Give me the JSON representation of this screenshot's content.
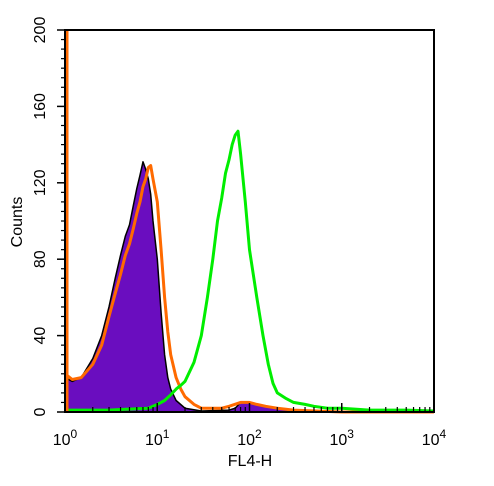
{
  "chart_data": {
    "type": "area",
    "xscale": "log",
    "xlim": [
      1,
      10000
    ],
    "ylim": [
      0,
      200
    ],
    "xlabel": "FL4-H",
    "ylabel": "Counts",
    "title": "",
    "grid": false,
    "legend": "none",
    "x_ticks": [
      {
        "value": 1,
        "base": "10",
        "exp": "0"
      },
      {
        "value": 10,
        "base": "10",
        "exp": "1"
      },
      {
        "value": 100,
        "base": "10",
        "exp": "2"
      },
      {
        "value": 1000,
        "base": "10",
        "exp": "3"
      },
      {
        "value": 10000,
        "base": "10",
        "exp": "4"
      }
    ],
    "y_ticks": [
      "0",
      "40",
      "80",
      "120",
      "160",
      "200"
    ],
    "series": [
      {
        "style": "filled",
        "color": "#6a0dbf",
        "outline_color": "#000000",
        "points": [
          [
            1.0,
            18
          ],
          [
            1.2,
            16
          ],
          [
            1.5,
            18
          ],
          [
            2.0,
            28
          ],
          [
            2.5,
            40
          ],
          [
            3.0,
            55
          ],
          [
            3.5,
            70
          ],
          [
            4.0,
            82
          ],
          [
            4.5,
            92
          ],
          [
            5.0,
            98
          ],
          [
            5.5,
            108
          ],
          [
            6.0,
            117
          ],
          [
            6.5,
            124
          ],
          [
            7.0,
            131
          ],
          [
            7.5,
            127
          ],
          [
            8.0,
            122
          ],
          [
            8.5,
            114
          ],
          [
            9.0,
            100
          ],
          [
            10.0,
            80
          ],
          [
            11.0,
            52
          ],
          [
            12.0,
            30
          ],
          [
            13.0,
            18
          ],
          [
            14.0,
            12
          ],
          [
            16.0,
            6
          ],
          [
            20.0,
            2
          ],
          [
            30.0,
            0.5
          ],
          [
            60.0,
            1
          ],
          [
            70.0,
            2
          ],
          [
            80.0,
            5
          ],
          [
            100.0,
            5
          ],
          [
            120.0,
            4
          ],
          [
            150.0,
            3
          ],
          [
            200.0,
            2
          ],
          [
            300.0,
            1
          ],
          [
            1000.0,
            0
          ],
          [
            10000.0,
            0
          ]
        ]
      },
      {
        "style": "line",
        "color": "#ff6a00",
        "points": [
          [
            1.0,
            20
          ],
          [
            1.2,
            17
          ],
          [
            1.5,
            18
          ],
          [
            2.0,
            25
          ],
          [
            2.5,
            35
          ],
          [
            3.0,
            50
          ],
          [
            3.5,
            62
          ],
          [
            4.0,
            72
          ],
          [
            4.5,
            82
          ],
          [
            5.0,
            88
          ],
          [
            5.5,
            96
          ],
          [
            6.0,
            104
          ],
          [
            6.5,
            110
          ],
          [
            7.0,
            118
          ],
          [
            7.5,
            122
          ],
          [
            8.0,
            128
          ],
          [
            8.5,
            129
          ],
          [
            9.0,
            122
          ],
          [
            10.0,
            110
          ],
          [
            11.0,
            85
          ],
          [
            12.0,
            60
          ],
          [
            13.0,
            42
          ],
          [
            14.0,
            30
          ],
          [
            16.0,
            18
          ],
          [
            18.0,
            12
          ],
          [
            20.0,
            8
          ],
          [
            25.0,
            4
          ],
          [
            30.0,
            2
          ],
          [
            40.0,
            2
          ],
          [
            50.0,
            2
          ],
          [
            60.0,
            3
          ],
          [
            80.0,
            5
          ],
          [
            100.0,
            5
          ],
          [
            120.0,
            4
          ],
          [
            150.0,
            3
          ],
          [
            200.0,
            2
          ],
          [
            300.0,
            1
          ],
          [
            1000.0,
            0
          ],
          [
            10000.0,
            0
          ]
        ]
      },
      {
        "style": "line",
        "color": "#00ee00",
        "points": [
          [
            1.0,
            1
          ],
          [
            2.0,
            1
          ],
          [
            3.0,
            1
          ],
          [
            5.0,
            1.5
          ],
          [
            8.0,
            2
          ],
          [
            10.0,
            4
          ],
          [
            12.0,
            6
          ],
          [
            14.0,
            9
          ],
          [
            16.0,
            12
          ],
          [
            18.0,
            14
          ],
          [
            20.0,
            16
          ],
          [
            25.0,
            26
          ],
          [
            30.0,
            40
          ],
          [
            35.0,
            60
          ],
          [
            40.0,
            80
          ],
          [
            45.0,
            100
          ],
          [
            50.0,
            112
          ],
          [
            55.0,
            125
          ],
          [
            60.0,
            132
          ],
          [
            65.0,
            140
          ],
          [
            70.0,
            145
          ],
          [
            75.0,
            147
          ],
          [
            80.0,
            135
          ],
          [
            90.0,
            110
          ],
          [
            100.0,
            85
          ],
          [
            120.0,
            60
          ],
          [
            140.0,
            40
          ],
          [
            160.0,
            25
          ],
          [
            180.0,
            15
          ],
          [
            200.0,
            10
          ],
          [
            250.0,
            7
          ],
          [
            300.0,
            5
          ],
          [
            400.0,
            4
          ],
          [
            500.0,
            3
          ],
          [
            700.0,
            2
          ],
          [
            1000.0,
            2
          ],
          [
            2000.0,
            1
          ],
          [
            5000.0,
            1
          ],
          [
            10000.0,
            0.5
          ]
        ]
      }
    ]
  }
}
